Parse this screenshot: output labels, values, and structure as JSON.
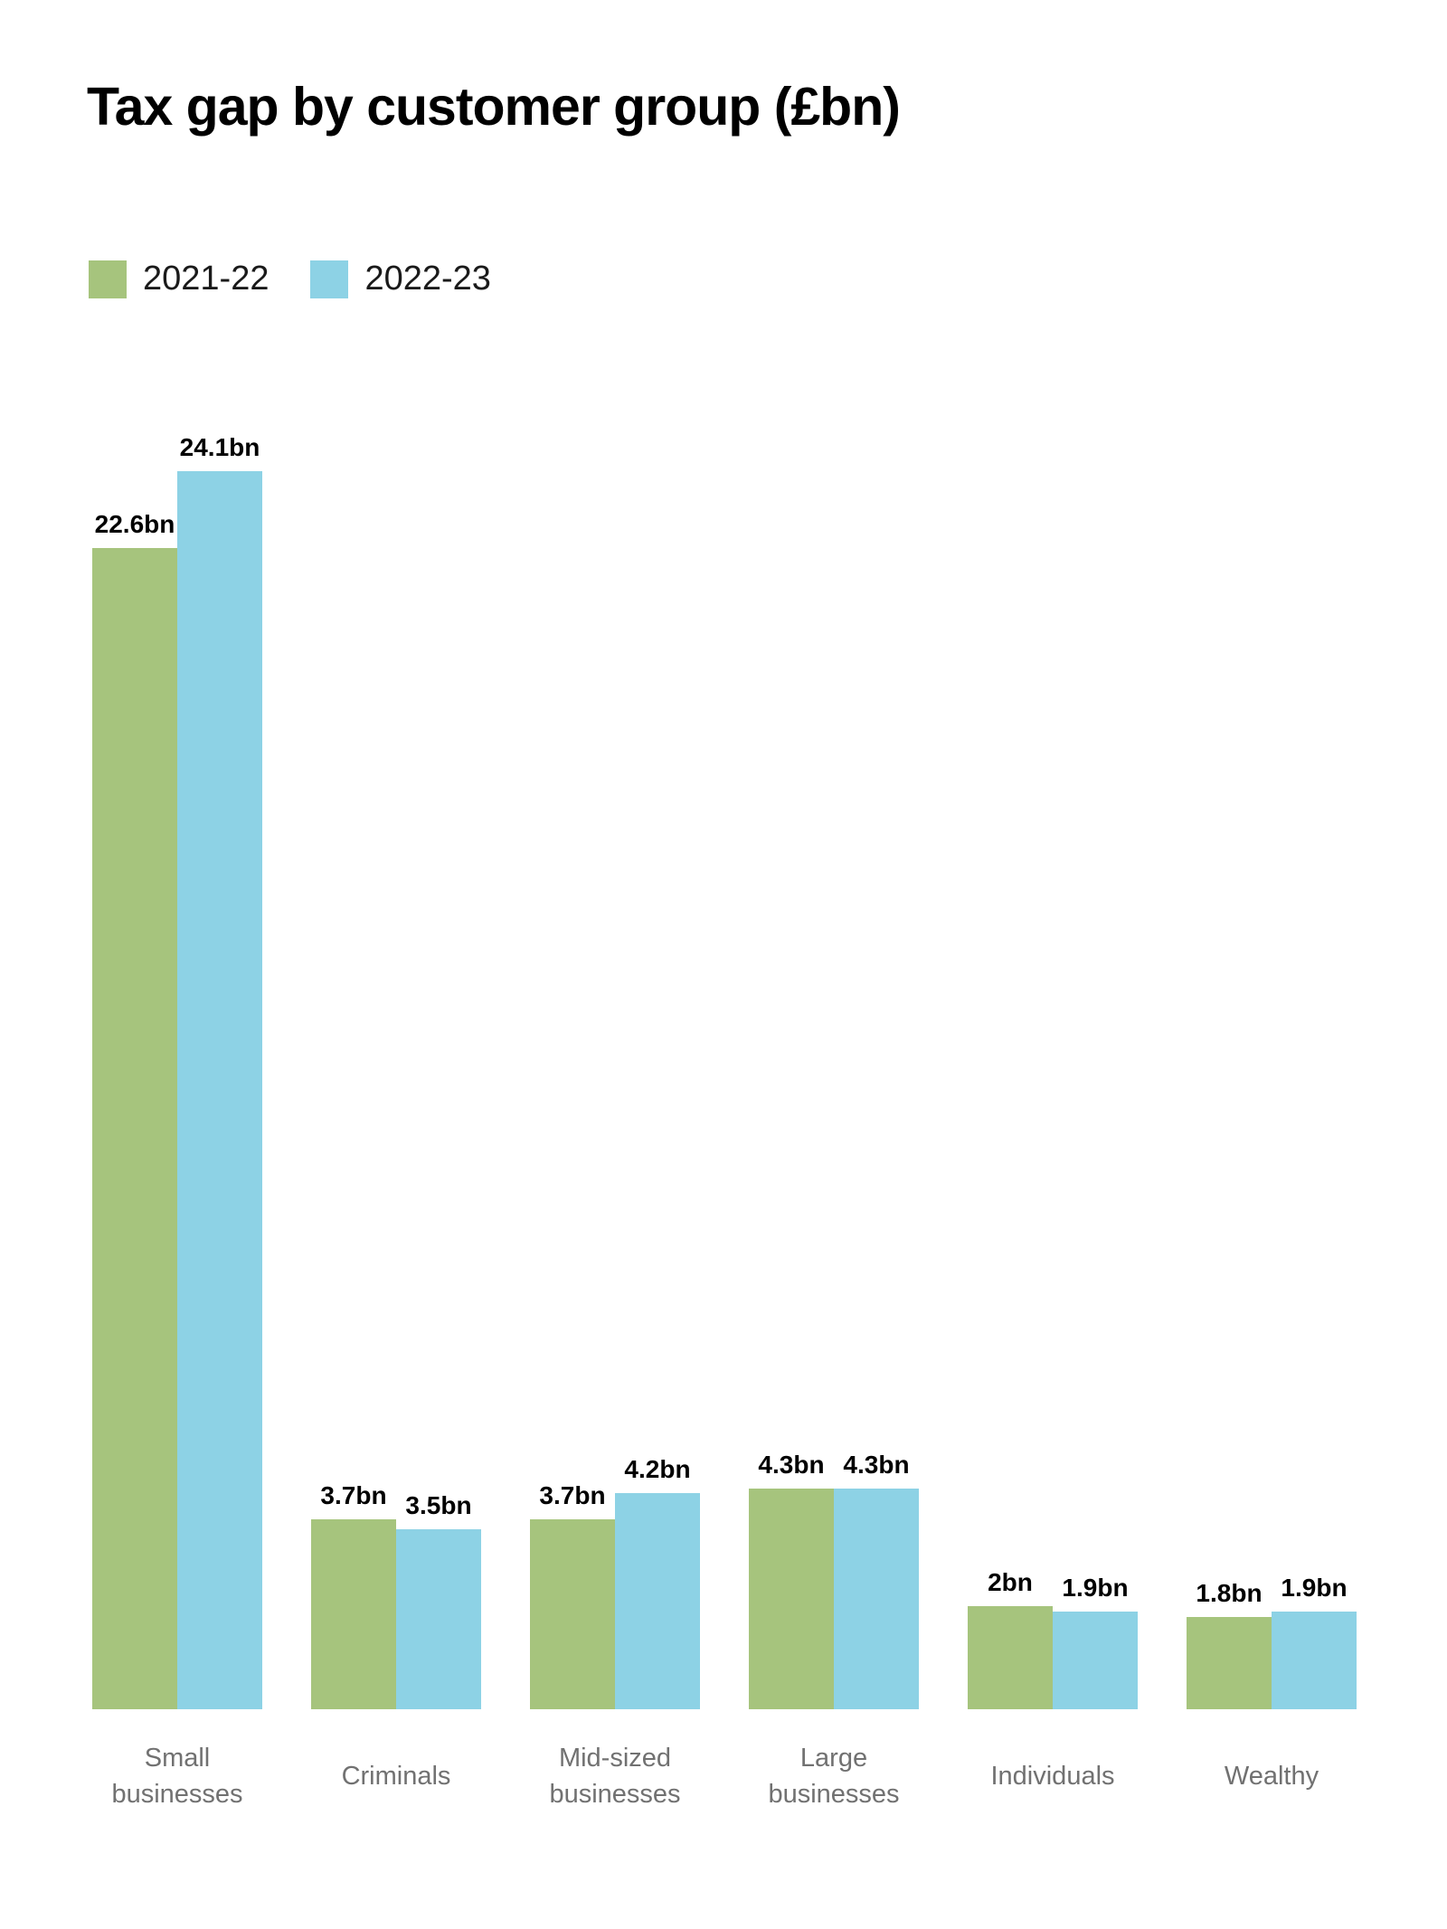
{
  "page": {
    "title": "Tax gap by customer group (£bn)"
  },
  "legend": {
    "items": [
      {
        "label": "2021-22",
        "color": "#a6c47d"
      },
      {
        "label": "2022-23",
        "color": "#8dd2e5"
      }
    ]
  },
  "chart_data": {
    "type": "bar",
    "title": "Tax gap by customer group (£bn)",
    "unit": "£bn",
    "categories": [
      "Small businesses",
      "Criminals",
      "Mid-sized businesses",
      "Large businesses",
      "Individuals",
      "Wealthy"
    ],
    "series": [
      {
        "name": "2021-22",
        "color": "#a6c47d",
        "values": [
          22.6,
          3.7,
          3.7,
          4.3,
          2,
          1.8
        ],
        "value_labels": [
          "22.6bn",
          "3.7bn",
          "3.7bn",
          "4.3bn",
          "2bn",
          "1.8bn"
        ]
      },
      {
        "name": "2022-23",
        "color": "#8dd2e5",
        "values": [
          24.1,
          3.5,
          4.2,
          4.3,
          1.9,
          1.9
        ],
        "value_labels": [
          "24.1bn",
          "3.5bn",
          "4.2bn",
          "4.3bn",
          "1.9bn",
          "1.9bn"
        ]
      }
    ],
    "ylim": [
      0,
      25
    ],
    "grid": false,
    "axes_visible": false,
    "legend_position": "top-left",
    "value_label_color": "#000000",
    "category_label_color": "#717171"
  }
}
